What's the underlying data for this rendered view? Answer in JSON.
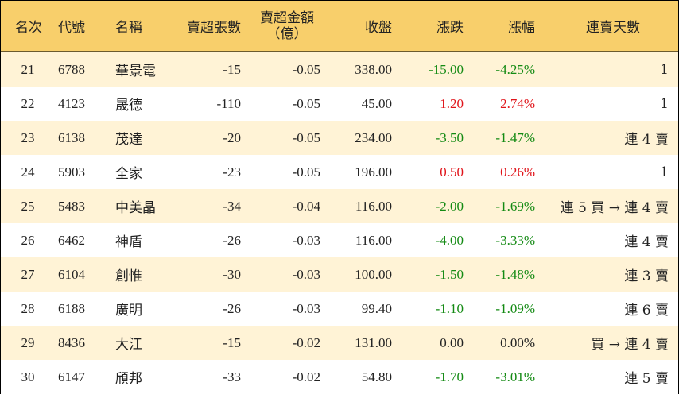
{
  "headers": {
    "rank": "名次",
    "code": "代號",
    "name": "名稱",
    "net_shares": "賣超張數",
    "net_amount_line1": "賣超金額",
    "net_amount_line2": "（億）",
    "close": "收盤",
    "change": "漲跌",
    "change_pct": "漲幅",
    "streak": "連賣天數"
  },
  "colors": {
    "header_bg": "#f8cf6b",
    "stripe_bg": "#fff3d6",
    "up": "#e0141a",
    "down": "#138a13"
  },
  "rows": [
    {
      "rank": "21",
      "code": "6788",
      "name": "華景電",
      "net_shares": "-15",
      "net_amount": "-0.05",
      "close": "338.00",
      "change": "-15.00",
      "change_pct": "-4.25%",
      "direction": "down",
      "streak": "1"
    },
    {
      "rank": "22",
      "code": "4123",
      "name": "晟德",
      "net_shares": "-110",
      "net_amount": "-0.05",
      "close": "45.00",
      "change": "1.20",
      "change_pct": "2.74%",
      "direction": "up",
      "streak": "1"
    },
    {
      "rank": "23",
      "code": "6138",
      "name": "茂達",
      "net_shares": "-20",
      "net_amount": "-0.05",
      "close": "234.00",
      "change": "-3.50",
      "change_pct": "-1.47%",
      "direction": "down",
      "streak": "連 4 賣"
    },
    {
      "rank": "24",
      "code": "5903",
      "name": "全家",
      "net_shares": "-23",
      "net_amount": "-0.05",
      "close": "196.00",
      "change": "0.50",
      "change_pct": "0.26%",
      "direction": "up",
      "streak": "1"
    },
    {
      "rank": "25",
      "code": "5483",
      "name": "中美晶",
      "net_shares": "-34",
      "net_amount": "-0.04",
      "close": "116.00",
      "change": "-2.00",
      "change_pct": "-1.69%",
      "direction": "down",
      "streak": "連 5 買 → 連 4 賣"
    },
    {
      "rank": "26",
      "code": "6462",
      "name": "神盾",
      "net_shares": "-26",
      "net_amount": "-0.03",
      "close": "116.00",
      "change": "-4.00",
      "change_pct": "-3.33%",
      "direction": "down",
      "streak": "連 4 賣"
    },
    {
      "rank": "27",
      "code": "6104",
      "name": "創惟",
      "net_shares": "-30",
      "net_amount": "-0.03",
      "close": "100.00",
      "change": "-1.50",
      "change_pct": "-1.48%",
      "direction": "down",
      "streak": "連 3 賣"
    },
    {
      "rank": "28",
      "code": "6188",
      "name": "廣明",
      "net_shares": "-26",
      "net_amount": "-0.03",
      "close": "99.40",
      "change": "-1.10",
      "change_pct": "-1.09%",
      "direction": "down",
      "streak": "連 6 賣"
    },
    {
      "rank": "29",
      "code": "8436",
      "name": "大江",
      "net_shares": "-15",
      "net_amount": "-0.02",
      "close": "131.00",
      "change": "0.00",
      "change_pct": "0.00%",
      "direction": "flat",
      "streak": "買 → 連 4 賣"
    },
    {
      "rank": "30",
      "code": "6147",
      "name": "頎邦",
      "net_shares": "-33",
      "net_amount": "-0.02",
      "close": "54.80",
      "change": "-1.70",
      "change_pct": "-3.01%",
      "direction": "down",
      "streak": "連 5 賣"
    }
  ]
}
